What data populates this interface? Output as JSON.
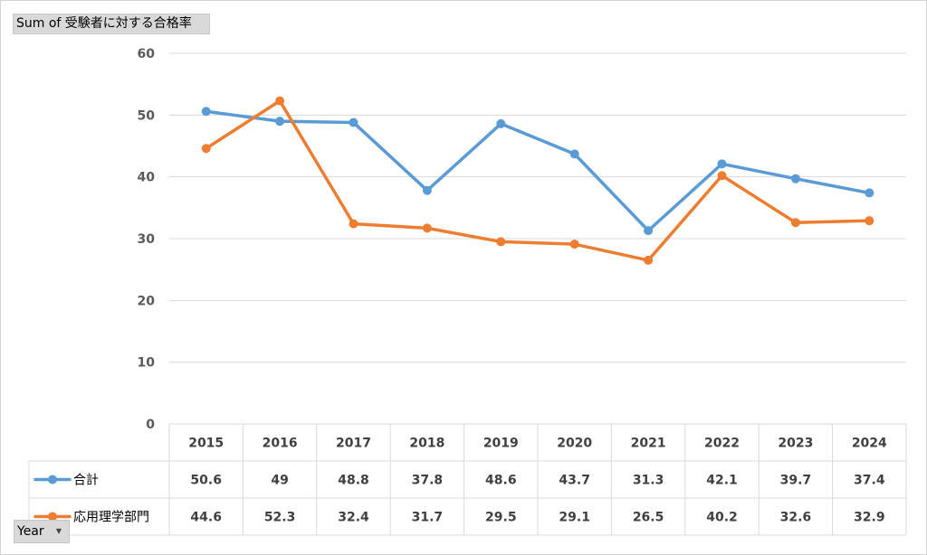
{
  "field_button": {
    "label": "Sum of 受験者に対する合格率"
  },
  "axis_button": {
    "label": "Year"
  },
  "chart_data": {
    "type": "line",
    "title": "",
    "xlabel": "",
    "ylabel": "",
    "categories": [
      "2015",
      "2016",
      "2017",
      "2018",
      "2019",
      "2020",
      "2021",
      "2022",
      "2023",
      "2024"
    ],
    "ylim": [
      0,
      60
    ],
    "yticks": [
      0,
      10,
      20,
      30,
      40,
      50,
      60
    ],
    "grid": true,
    "legend": "data-table",
    "series": [
      {
        "name": "合計",
        "color": "#5b9bd5",
        "values": [
          50.6,
          49,
          48.8,
          37.8,
          48.6,
          43.7,
          31.3,
          42.1,
          39.7,
          37.4
        ]
      },
      {
        "name": "応用理学部門",
        "color": "#ed7d31",
        "values": [
          44.6,
          52.3,
          32.4,
          31.7,
          29.5,
          29.1,
          26.5,
          40.2,
          32.6,
          32.9
        ]
      }
    ]
  }
}
